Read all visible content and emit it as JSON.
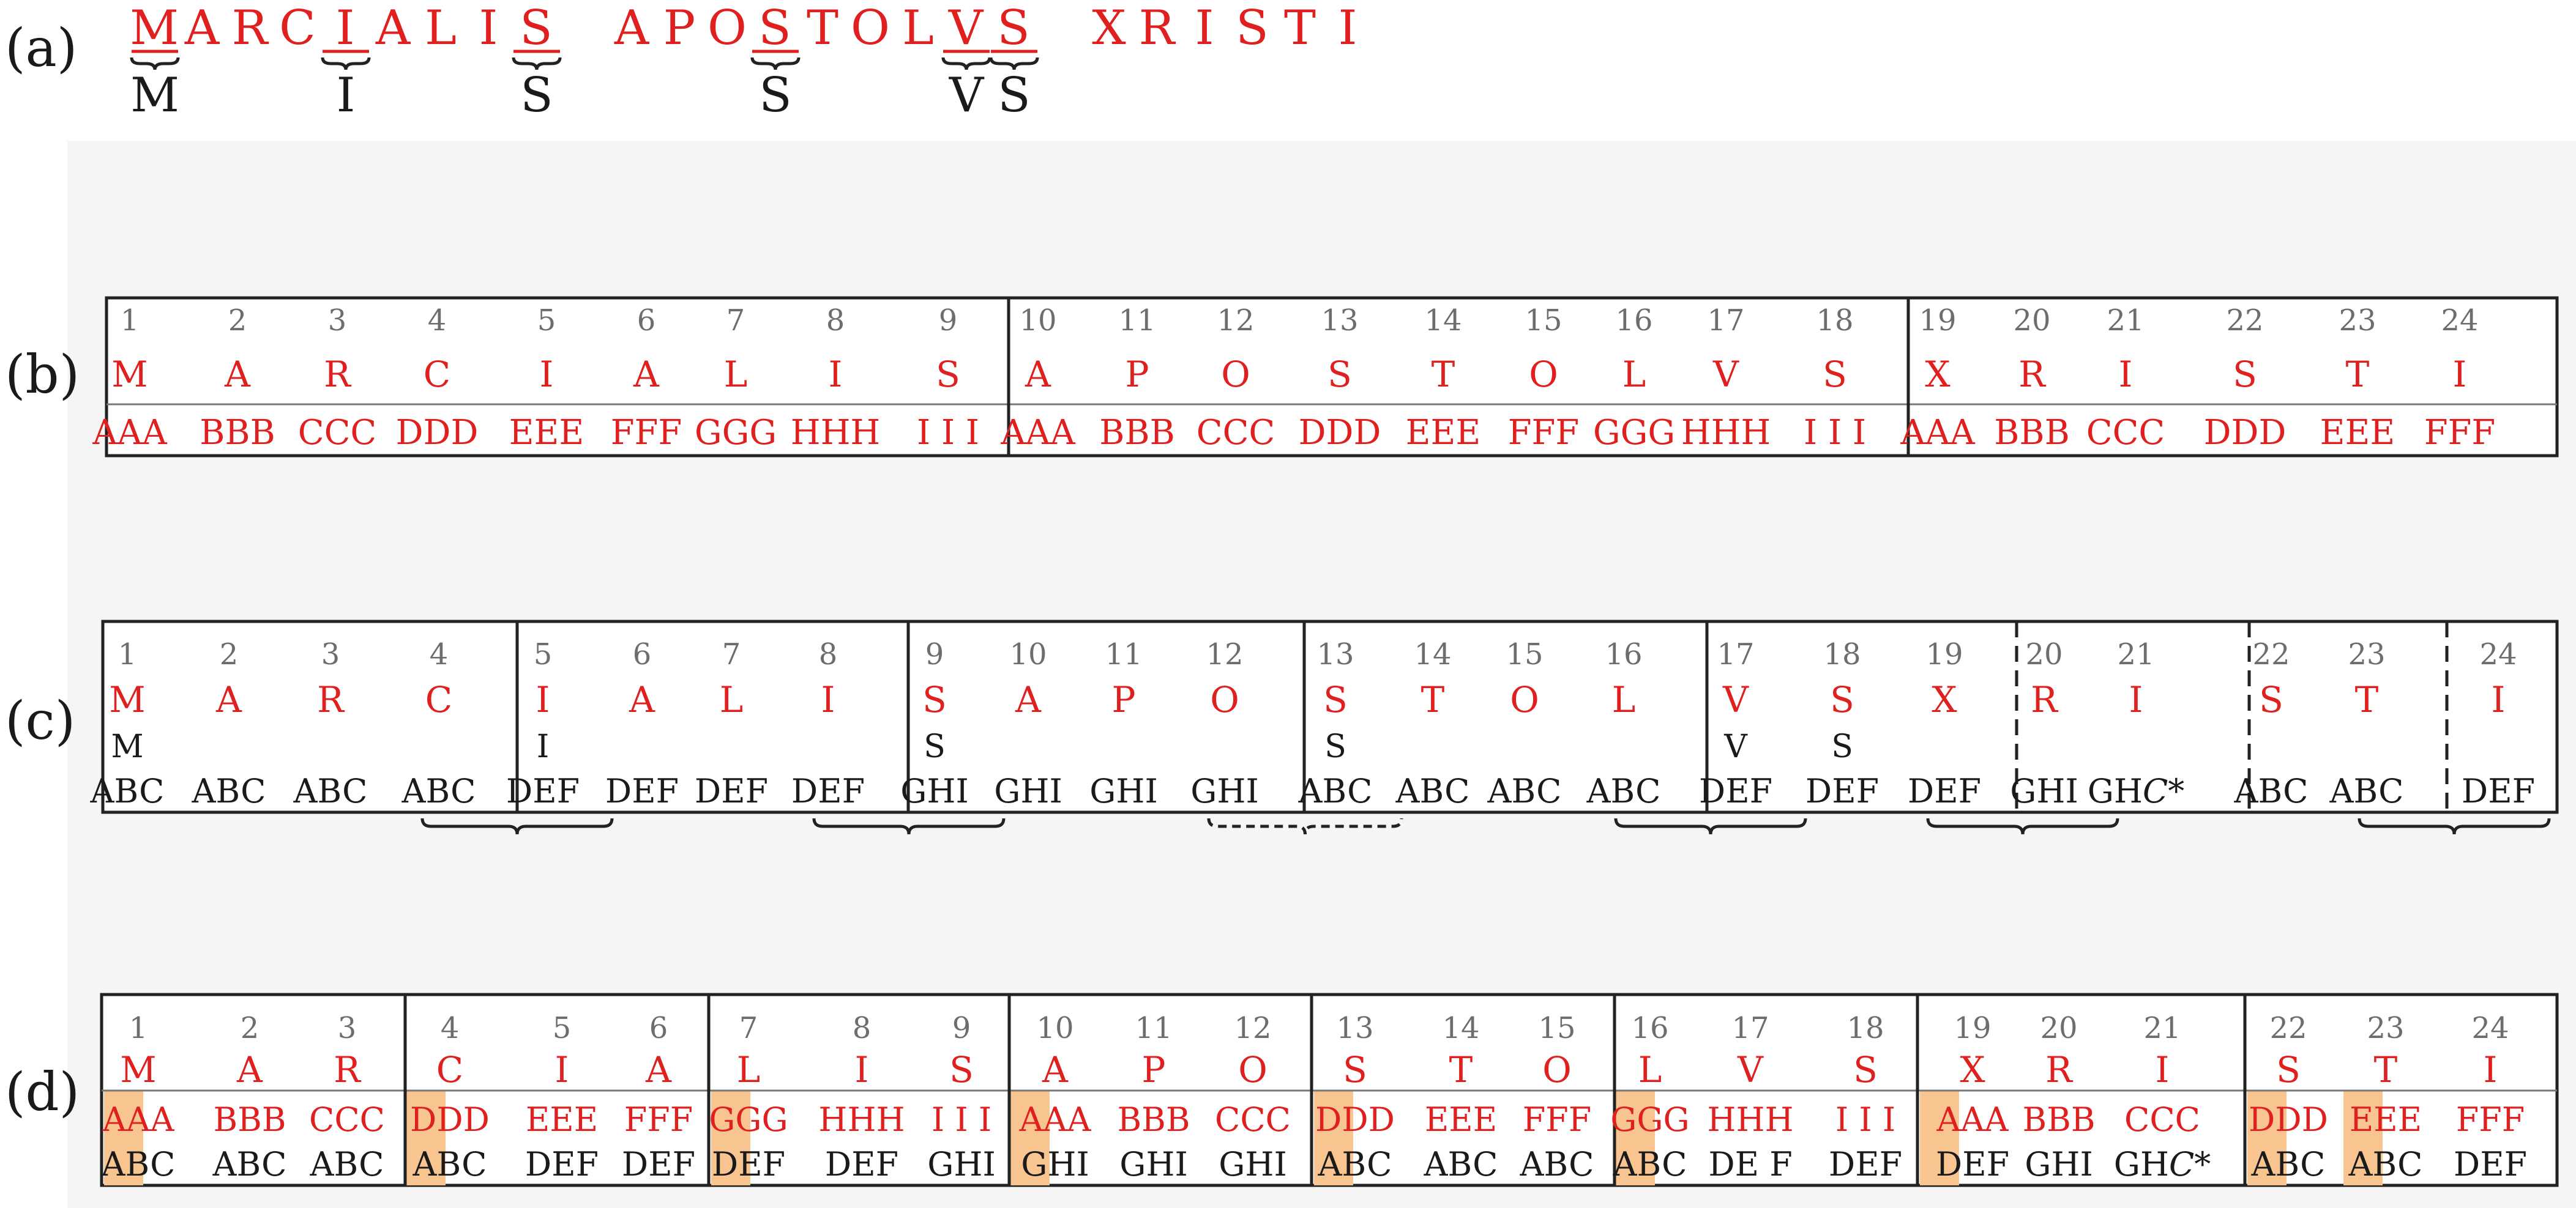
{
  "colors": {
    "red": "#e0201e",
    "black": "#1a1a1a",
    "number_grey": "#6d6d6d",
    "highlight": "#f8c48f",
    "background": "#f5f5f5"
  },
  "panel_labels": [
    "(a)",
    "(b)",
    "(c)",
    "(d)"
  ],
  "panel_a": {
    "letters": [
      "M",
      "A",
      "R",
      "C",
      "I",
      "A",
      "L",
      "I",
      "S",
      "A",
      "P",
      "O",
      "S",
      "T",
      "O",
      "L",
      "V",
      "S",
      "X",
      "R",
      "I",
      "S",
      "T",
      "I"
    ],
    "marked": [
      {
        "start": 0,
        "end": 0,
        "label": "M"
      },
      {
        "start": 4,
        "end": 4,
        "label": "I"
      },
      {
        "start": 8,
        "end": 8,
        "label": "S"
      },
      {
        "start": 12,
        "end": 12,
        "label": "S"
      },
      {
        "start": 16,
        "end": 16,
        "label": "V"
      },
      {
        "start": 17,
        "end": 17,
        "label": "S"
      }
    ]
  },
  "panel_b": {
    "numbers": [
      "1",
      "2",
      "3",
      "4",
      "5",
      "6",
      "7",
      "8",
      "9",
      "10",
      "11",
      "12",
      "13",
      "14",
      "15",
      "16",
      "17",
      "18",
      "19",
      "20",
      "21",
      "22",
      "23",
      "24"
    ],
    "letters": [
      "M",
      "A",
      "R",
      "C",
      "I",
      "A",
      "L",
      "I",
      "S",
      "A",
      "P",
      "O",
      "S",
      "T",
      "O",
      "L",
      "V",
      "S",
      "X",
      "R",
      "I",
      "S",
      "T",
      "I"
    ],
    "codes": [
      "AAA",
      "BBB",
      "CCC",
      "DDD",
      "EEE",
      "FFF",
      "GGG",
      "HHH",
      "I I I",
      "AAA",
      "BBB",
      "CCC",
      "DDD",
      "EEE",
      "FFF",
      "GGG",
      "HHH",
      "I I I",
      "AAA",
      "BBB",
      "CCC",
      "DDD",
      "EEE",
      "FFF"
    ]
  },
  "panel_c": {
    "numbers": [
      "1",
      "2",
      "3",
      "4",
      "5",
      "6",
      "7",
      "8",
      "9",
      "10",
      "11",
      "12",
      "13",
      "14",
      "15",
      "16",
      "17",
      "18",
      "19",
      "20",
      "21",
      "22",
      "23",
      "24"
    ],
    "letters": [
      "M",
      "A",
      "R",
      "C",
      "I",
      "A",
      "L",
      "I",
      "S",
      "A",
      "P",
      "O",
      "S",
      "T",
      "O",
      "L",
      "V",
      "S",
      "X",
      "R",
      "I",
      "S",
      "T",
      "I"
    ],
    "marks": [
      "M",
      "",
      "",
      "",
      "I",
      "",
      "",
      "",
      "S",
      "",
      "",
      "",
      "S",
      "",
      "",
      "",
      "V",
      "S",
      "",
      "",
      "",
      "",
      "",
      ""
    ],
    "codes": [
      "ABC",
      "ABC",
      "ABC",
      "ABC",
      "DEF",
      "DEF",
      "DEF",
      "DEF",
      "GHI",
      "GHI",
      "GHI",
      "GHI",
      "ABC",
      "ABC",
      "ABC",
      "ABC",
      "DEF",
      "DEF",
      "DEF",
      "GHI",
      "GH",
      "ABC",
      "ABC",
      "DEF"
    ],
    "code_suffix": "C*"
  },
  "panel_d": {
    "numbers": [
      "1",
      "2",
      "3",
      "4",
      "5",
      "6",
      "7",
      "8",
      "9",
      "10",
      "11",
      "12",
      "13",
      "14",
      "15",
      "16",
      "17",
      "18",
      "19",
      "20",
      "21",
      "22",
      "23",
      "24"
    ],
    "letters": [
      "M",
      "A",
      "R",
      "C",
      "I",
      "A",
      "L",
      "I",
      "S",
      "A",
      "P",
      "O",
      "S",
      "T",
      "O",
      "L",
      "V",
      "S",
      "X",
      "R",
      "I",
      "S",
      "T",
      "I"
    ],
    "codes_top": [
      "AAA",
      "BBB",
      "CCC",
      "DDD",
      "EEE",
      "FFF",
      "GGG",
      "HHH",
      "I I I",
      "AAA",
      "BBB",
      "CCC",
      "DDD",
      "EEE",
      "FFF",
      "GGG",
      "HHH",
      "I I I",
      "AAA",
      "BBB",
      "CCC",
      "DDD",
      "EEE",
      "FFF"
    ],
    "codes_bottom": [
      "ABC",
      "ABC",
      "ABC",
      "ABC",
      "DEF",
      "DEF",
      "DEF",
      "DEF",
      "GHI",
      "GHI",
      "GHI",
      "GHI",
      "ABC",
      "ABC",
      "ABC",
      "ABC",
      "DE F",
      "DEF",
      "DEF",
      "GHI",
      "GH",
      "ABC",
      "ABC",
      "DEF"
    ],
    "code_suffix": "C*",
    "highlighted_columns": [
      1,
      4,
      7,
      10,
      13,
      16,
      19,
      22,
      23
    ]
  }
}
